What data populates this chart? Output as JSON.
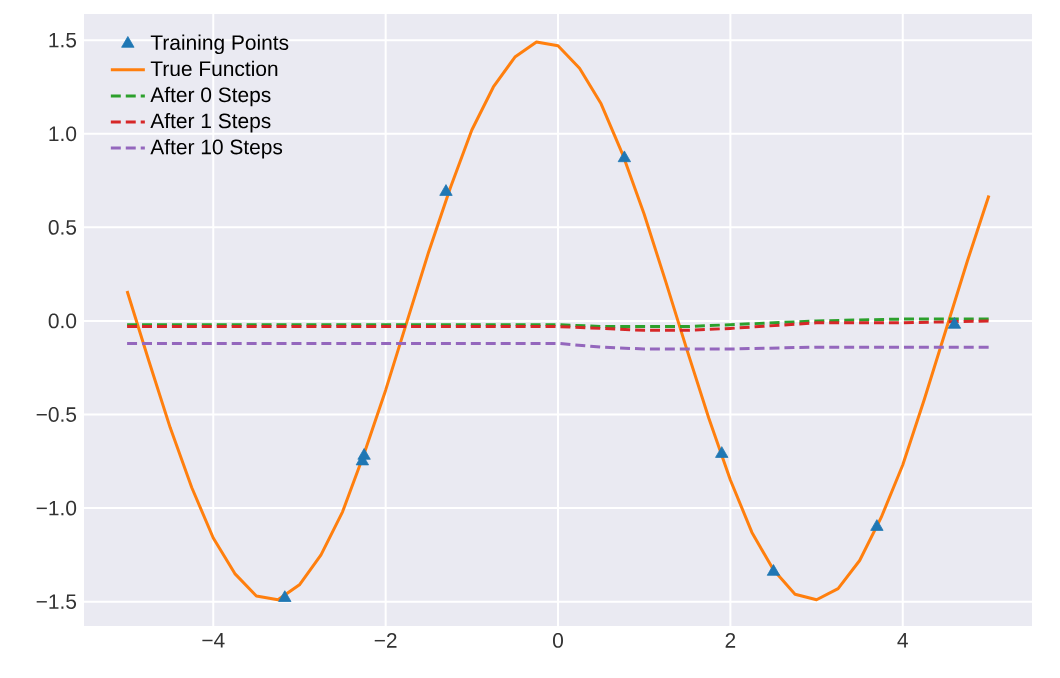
{
  "chart_data": {
    "type": "line",
    "xlim": [
      -5.5,
      5.5
    ],
    "ylim": [
      -1.63,
      1.64
    ],
    "xticks": [
      {
        "value": -4,
        "label": "−4"
      },
      {
        "value": -2,
        "label": "−2"
      },
      0,
      2,
      4
    ],
    "yticks": [
      {
        "value": -1.5,
        "label": "−1.5"
      },
      {
        "value": -1.0,
        "label": "−1.0"
      },
      {
        "value": -0.5,
        "label": "−0.5"
      },
      {
        "value": 0,
        "label": "0.0"
      },
      {
        "value": 0.5,
        "label": "0.5"
      },
      {
        "value": 1.0,
        "label": "1.0"
      },
      {
        "value": 1.5,
        "label": "1.5"
      }
    ],
    "grid": true,
    "legend": "top left",
    "series": [
      {
        "name": "Training Points",
        "type": "scatter",
        "marker": "triangle",
        "color": "#1f77b4",
        "x": [
          -3.17,
          -2.27,
          -2.25,
          -1.3,
          0.77,
          1.9,
          2.5,
          3.7,
          4.6
        ],
        "values": [
          -1.48,
          -0.75,
          -0.72,
          0.69,
          0.87,
          -0.71,
          -1.34,
          -1.1,
          -0.02
        ]
      },
      {
        "name": "True Function",
        "line_style": "solid",
        "color": "#ff7f0e",
        "x": [
          -5,
          -4.75,
          -4.5,
          -4.25,
          -4,
          -3.75,
          -3.5,
          -3.25,
          -3,
          -2.75,
          -2.5,
          -2.25,
          -2,
          -1.75,
          -1.5,
          -1.25,
          -1,
          -0.75,
          -0.5,
          -0.25,
          0,
          0.25,
          0.5,
          0.75,
          1,
          1.25,
          1.5,
          1.75,
          2,
          2.25,
          2.5,
          2.75,
          3,
          3.25,
          3.5,
          3.75,
          4,
          4.25,
          4.5,
          4.75,
          5
        ],
        "values": [
          0.16,
          -0.21,
          -0.57,
          -0.89,
          -1.16,
          -1.35,
          -1.47,
          -1.49,
          -1.41,
          -1.25,
          -1.02,
          -0.71,
          -0.37,
          0,
          0.37,
          0.71,
          1.02,
          1.25,
          1.41,
          1.49,
          1.47,
          1.35,
          1.16,
          0.89,
          0.57,
          0.21,
          -0.16,
          -0.52,
          -0.85,
          -1.13,
          -1.33,
          -1.46,
          -1.49,
          -1.43,
          -1.28,
          -1.05,
          -0.77,
          -0.42,
          -0.05,
          0.32,
          0.67
        ]
      },
      {
        "name": "After 0 Steps",
        "line_style": "dashed",
        "color": "#2ca02c",
        "x": [
          -5,
          -1,
          0,
          0.5,
          1,
          1.5,
          2,
          3,
          4,
          5
        ],
        "values": [
          -0.02,
          -0.02,
          -0.02,
          -0.03,
          -0.03,
          -0.03,
          -0.02,
          0.0,
          0.01,
          0.01
        ]
      },
      {
        "name": "After 1 Steps",
        "line_style": "dashed",
        "color": "#d62728",
        "x": [
          -5,
          -1,
          0,
          0.5,
          1,
          1.5,
          2,
          3,
          4,
          5
        ],
        "values": [
          -0.03,
          -0.03,
          -0.03,
          -0.04,
          -0.05,
          -0.05,
          -0.04,
          -0.01,
          -0.01,
          0.0
        ]
      },
      {
        "name": "After 10 Steps",
        "line_style": "dashed",
        "color": "#9467bd",
        "x": [
          -5,
          -1,
          0,
          0.5,
          1,
          1.5,
          2,
          3,
          4,
          5
        ],
        "values": [
          -0.12,
          -0.12,
          -0.12,
          -0.14,
          -0.15,
          -0.15,
          -0.15,
          -0.14,
          -0.14,
          -0.14
        ]
      }
    ]
  }
}
